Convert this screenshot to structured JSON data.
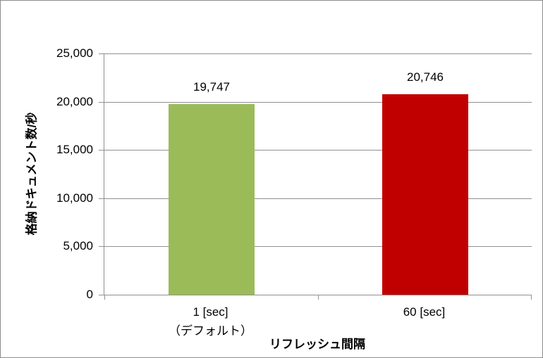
{
  "chart_data": {
    "type": "bar",
    "categories": [
      [
        "1 [sec]",
        "（デフォルト）"
      ],
      [
        "60 [sec]"
      ]
    ],
    "values": [
      19747,
      20746
    ],
    "value_labels": [
      "19,747",
      "20,746"
    ],
    "bar_colors": [
      "#9BBB59",
      "#C00000"
    ],
    "title": "",
    "xlabel": "リフレッシュ間隔",
    "ylabel": "格納ドキュメント数/秒",
    "ylim": [
      0,
      25000
    ],
    "ytick_step": 5000,
    "ytick_labels": [
      "0",
      "5,000",
      "10,000",
      "15,000",
      "20,000",
      "25,000"
    ],
    "grid": true,
    "legend": false
  },
  "colors": {
    "grid": "#909090",
    "axis": "#909090",
    "border": "#8C8C8C",
    "text": "#000000",
    "background": "#FFFFFF"
  }
}
